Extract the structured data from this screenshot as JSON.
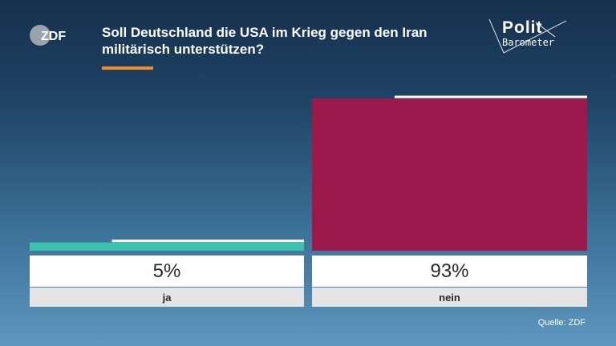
{
  "header": {
    "logo_text": "ZDF",
    "question": "Soll Deutschland die USA im Krieg gegen den Iran militärisch unterstützen?",
    "brand_top": "Polit",
    "brand_bottom": "Barometer"
  },
  "chart_data": {
    "type": "bar",
    "title": "Soll Deutschland die USA im Krieg gegen den Iran militärisch unterstützen?",
    "categories": [
      "ja",
      "nein"
    ],
    "values": [
      5,
      93
    ],
    "value_labels": [
      "5%",
      "93%"
    ],
    "ylim": [
      0,
      100
    ],
    "colors": [
      "#3cc3b0",
      "#9b1a4b"
    ],
    "grid": false,
    "legend": "none"
  },
  "footer": {
    "source": "Quelle: ZDF"
  }
}
